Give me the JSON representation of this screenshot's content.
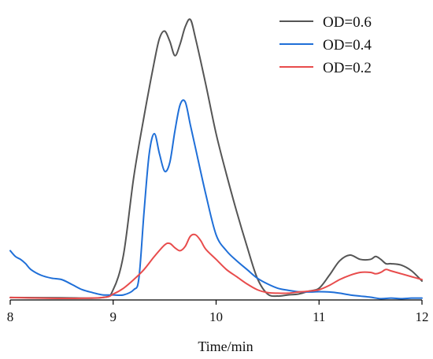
{
  "chart_data": {
    "type": "line",
    "title": "",
    "xlabel": "Time/min",
    "ylabel": "",
    "xlim": [
      8,
      12
    ],
    "ylim": [
      0,
      100
    ],
    "xticks": [
      "8",
      "9",
      "10",
      "11",
      "12"
    ],
    "grid": false,
    "legend_position": "top-right",
    "series": [
      {
        "name": "OD=0.6",
        "color": "#555555",
        "x": [
          8,
          8.5,
          8.9,
          9.0,
          9.1,
          9.2,
          9.3,
          9.4,
          9.45,
          9.5,
          9.55,
          9.6,
          9.65,
          9.7,
          9.75,
          9.8,
          9.9,
          10.0,
          10.1,
          10.2,
          10.3,
          10.4,
          10.5,
          10.6,
          10.7,
          10.8,
          10.9,
          11.0,
          11.1,
          11.2,
          11.3,
          11.4,
          11.5,
          11.55,
          11.6,
          11.65,
          11.7,
          11.8,
          11.9,
          12.0
        ],
        "y": [
          0.3,
          0.2,
          0.3,
          3,
          15,
          42,
          63,
          82,
          90,
          92.5,
          89,
          84,
          88,
          94,
          96.5,
          90,
          74,
          57,
          43,
          30,
          18,
          7,
          1.5,
          0.8,
          1.2,
          1.5,
          2.5,
          3.5,
          8,
          13,
          15,
          13.5,
          13.5,
          14.5,
          13.5,
          12,
          12,
          11.5,
          9.5,
          6
        ]
      },
      {
        "name": "OD=0.4",
        "color": "#1f6fd8",
        "x": [
          8,
          8.05,
          8.1,
          8.15,
          8.2,
          8.3,
          8.4,
          8.5,
          8.6,
          8.7,
          8.8,
          8.9,
          9.0,
          9.1,
          9.2,
          9.25,
          9.3,
          9.35,
          9.4,
          9.45,
          9.5,
          9.55,
          9.6,
          9.65,
          9.7,
          9.75,
          9.8,
          9.9,
          10.0,
          10.1,
          10.2,
          10.3,
          10.4,
          10.5,
          10.6,
          10.7,
          10.8,
          10.9,
          11.0,
          11.1,
          11.2,
          11.3,
          11.4,
          11.5,
          11.6,
          11.7,
          11.8,
          11.9,
          12.0
        ],
        "y": [
          16.5,
          14.5,
          13.5,
          12,
          10,
          8,
          7,
          6.5,
          4.8,
          3,
          2,
          1.2,
          1.2,
          1.2,
          3,
          7,
          30,
          50,
          57,
          50,
          44,
          47,
          58,
          67,
          68,
          60,
          52,
          36,
          22,
          16.5,
          13,
          10,
          7,
          5,
          3.5,
          2.8,
          2.3,
          2.2,
          2.3,
          2.2,
          1.8,
          1.2,
          0.8,
          0.4,
          -0.1,
          0.1,
          -0.1,
          0.1,
          0.1
        ]
      },
      {
        "name": "OD=0.2",
        "color": "#e84c4c",
        "x": [
          8,
          8.5,
          8.9,
          9.0,
          9.1,
          9.2,
          9.3,
          9.4,
          9.5,
          9.55,
          9.6,
          9.65,
          9.7,
          9.75,
          9.8,
          9.85,
          9.9,
          10.0,
          10.1,
          10.2,
          10.3,
          10.4,
          10.5,
          10.6,
          10.7,
          10.8,
          10.9,
          11.0,
          11.1,
          11.2,
          11.3,
          11.4,
          11.5,
          11.55,
          11.6,
          11.65,
          11.7,
          11.8,
          11.9,
          12.0
        ],
        "y": [
          0.3,
          0,
          0.3,
          1.5,
          3.5,
          6.5,
          10,
          14.5,
          18.5,
          19,
          17.5,
          16.5,
          18,
          21.5,
          22,
          20,
          17,
          13.5,
          10,
          7.5,
          5,
          3,
          2,
          1.8,
          1.8,
          2.2,
          2.5,
          3,
          4.5,
          6.5,
          8,
          9,
          9,
          8.5,
          9,
          10,
          9.5,
          8.5,
          7.5,
          6.5
        ]
      }
    ]
  }
}
